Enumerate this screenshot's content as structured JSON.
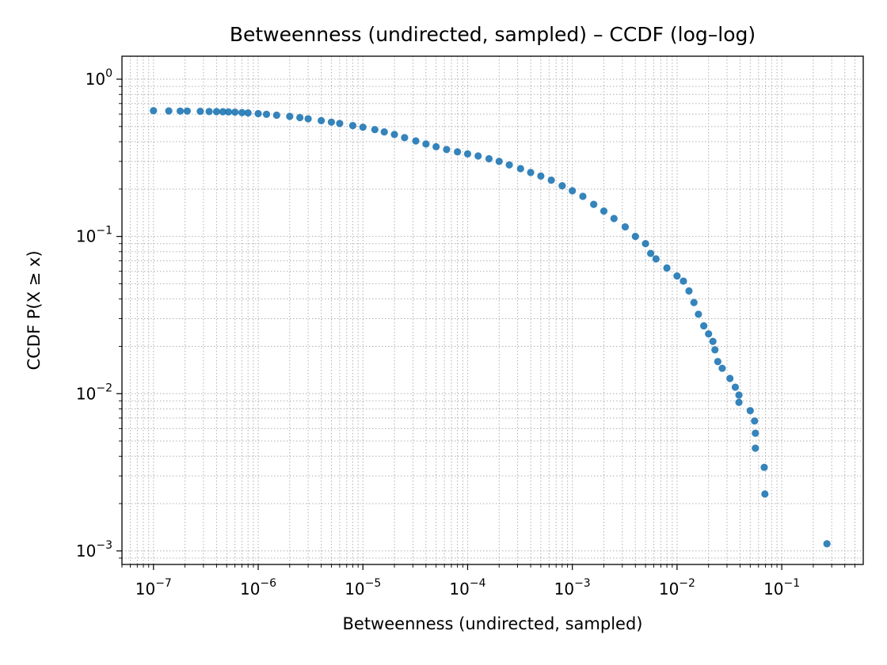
{
  "chart_data": {
    "type": "scatter",
    "title": "Betweenness (undirected, sampled) – CCDF (log–log)",
    "xlabel": "Betweenness (undirected, sampled)",
    "ylabel": "CCDF  P(X ≥ x)",
    "x_scale": "log",
    "y_scale": "log",
    "xlim": [
      5e-08,
      0.6
    ],
    "ylim": [
      0.00082,
      1.4
    ],
    "grid": true,
    "x_ticks": [
      {
        "value": 1e-07,
        "base": "10",
        "exp": "−7"
      },
      {
        "value": 1e-06,
        "base": "10",
        "exp": "−6"
      },
      {
        "value": 1e-05,
        "base": "10",
        "exp": "−5"
      },
      {
        "value": 0.0001,
        "base": "10",
        "exp": "−4"
      },
      {
        "value": 0.001,
        "base": "10",
        "exp": "−3"
      },
      {
        "value": 0.01,
        "base": "10",
        "exp": "−2"
      },
      {
        "value": 0.1,
        "base": "10",
        "exp": "−1"
      }
    ],
    "y_ticks": [
      {
        "value": 1,
        "base": "10",
        "exp": "0"
      },
      {
        "value": 0.1,
        "base": "10",
        "exp": "−1"
      },
      {
        "value": 0.01,
        "base": "10",
        "exp": "−2"
      },
      {
        "value": 0.001,
        "base": "10",
        "exp": "−3"
      }
    ],
    "series": [
      {
        "color": "#1f77b4",
        "points": [
          [
            1e-07,
            0.63
          ],
          [
            1.4e-07,
            0.628
          ],
          [
            1.8e-07,
            0.627
          ],
          [
            2.1e-07,
            0.627
          ],
          [
            2.8e-07,
            0.625
          ],
          [
            3.4e-07,
            0.623
          ],
          [
            4e-07,
            0.622
          ],
          [
            4.6e-07,
            0.621
          ],
          [
            5.2e-07,
            0.619
          ],
          [
            6e-07,
            0.617
          ],
          [
            7e-07,
            0.613
          ],
          [
            8e-07,
            0.61
          ],
          [
            1e-06,
            0.604
          ],
          [
            1.2e-06,
            0.598
          ],
          [
            1.5e-06,
            0.59
          ],
          [
            2e-06,
            0.58
          ],
          [
            2.5e-06,
            0.57
          ],
          [
            3e-06,
            0.56
          ],
          [
            4e-06,
            0.545
          ],
          [
            5e-06,
            0.533
          ],
          [
            6e-06,
            0.523
          ],
          [
            8e-06,
            0.507
          ],
          [
            1e-05,
            0.495
          ],
          [
            1.3e-05,
            0.478
          ],
          [
            1.6e-05,
            0.462
          ],
          [
            2e-05,
            0.445
          ],
          [
            2.5e-05,
            0.425
          ],
          [
            3.2e-05,
            0.405
          ],
          [
            4e-05,
            0.387
          ],
          [
            5e-05,
            0.372
          ],
          [
            6.3e-05,
            0.357
          ],
          [
            8e-05,
            0.345
          ],
          [
            0.0001,
            0.335
          ],
          [
            0.000126,
            0.325
          ],
          [
            0.00016,
            0.312
          ],
          [
            0.0002,
            0.3
          ],
          [
            0.00025,
            0.285
          ],
          [
            0.00032,
            0.27
          ],
          [
            0.0004,
            0.255
          ],
          [
            0.0005,
            0.242
          ],
          [
            0.00063,
            0.228
          ],
          [
            0.0008,
            0.21
          ],
          [
            0.001,
            0.195
          ],
          [
            0.00126,
            0.18
          ],
          [
            0.0016,
            0.16
          ],
          [
            0.002,
            0.145
          ],
          [
            0.0025,
            0.13
          ],
          [
            0.0032,
            0.115
          ],
          [
            0.004,
            0.1
          ],
          [
            0.005,
            0.09
          ],
          [
            0.0056,
            0.078
          ],
          [
            0.0063,
            0.072
          ],
          [
            0.008,
            0.063
          ],
          [
            0.01,
            0.056
          ],
          [
            0.0115,
            0.052
          ],
          [
            0.013,
            0.045
          ],
          [
            0.0145,
            0.038
          ],
          [
            0.016,
            0.032
          ],
          [
            0.018,
            0.027
          ],
          [
            0.02,
            0.024
          ],
          [
            0.022,
            0.0215
          ],
          [
            0.023,
            0.019
          ],
          [
            0.0245,
            0.016
          ],
          [
            0.027,
            0.0145
          ],
          [
            0.032,
            0.0125
          ],
          [
            0.036,
            0.011
          ],
          [
            0.039,
            0.0098
          ],
          [
            0.039,
            0.0088
          ],
          [
            0.05,
            0.0078
          ],
          [
            0.055,
            0.0067
          ],
          [
            0.056,
            0.0056
          ],
          [
            0.056,
            0.0045
          ],
          [
            0.068,
            0.0034
          ],
          [
            0.069,
            0.0023
          ],
          [
            0.27,
            0.00111
          ]
        ]
      }
    ]
  }
}
